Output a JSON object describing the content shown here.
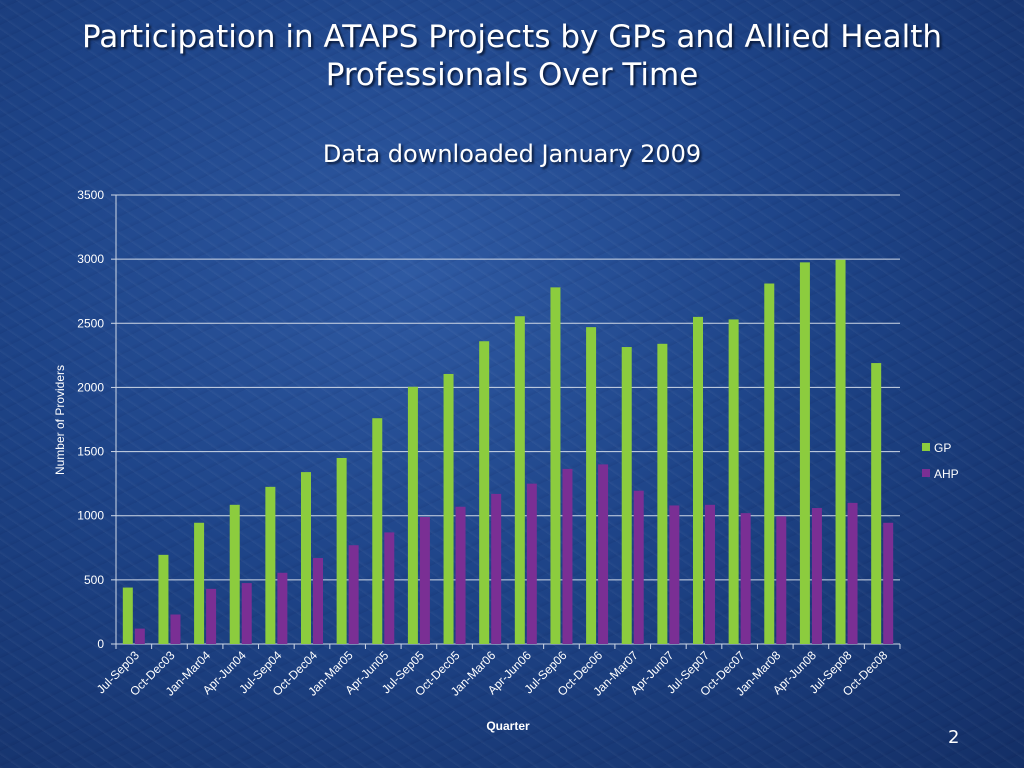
{
  "slide": {
    "title": "Participation in ATAPS Projects by GPs and Allied Health Professionals Over Time",
    "subtitle": "Data downloaded January 2009",
    "page_number": "2"
  },
  "chart_data": {
    "type": "bar",
    "title": "Participation in ATAPS Projects by GPs and Allied Health Professionals Over Time",
    "subtitle": "Data downloaded January 2009",
    "xlabel": "Quarter",
    "ylabel": "Number of Providers",
    "ylim": [
      0,
      3500
    ],
    "yticks": [
      0,
      500,
      1000,
      1500,
      2000,
      2500,
      3000,
      3500
    ],
    "grid": true,
    "legend_position": "right",
    "categories": [
      "Jul-Sep03",
      "Oct-Dec03",
      "Jan-Mar04",
      "Apr-Jun04",
      "Jul-Sep04",
      "Oct-Dec04",
      "Jan-Mar05",
      "Apr-Jun05",
      "Jul-Sep05",
      "Oct-Dec05",
      "Jan-Mar06",
      "Apr-Jun06",
      "Jul-Sep06",
      "Oct-Dec06",
      "Jan-Mar07",
      "Apr-Jun07",
      "Jul-Sep07",
      "Oct-Dec07",
      "Jan-Mar08",
      "Apr-Jun08",
      "Jul-Sep08",
      "Oct-Dec08"
    ],
    "series": [
      {
        "name": "GP",
        "color": "#8ccc3e",
        "values": [
          440,
          695,
          945,
          1085,
          1225,
          1340,
          1450,
          1760,
          2005,
          2105,
          2360,
          2555,
          2780,
          2470,
          2315,
          2340,
          2550,
          2530,
          2810,
          2975,
          2995,
          2190
        ]
      },
      {
        "name": "AHP",
        "color": "#7a2f94",
        "values": [
          120,
          230,
          430,
          475,
          555,
          670,
          770,
          870,
          990,
          1070,
          1170,
          1250,
          1365,
          1400,
          1195,
          1080,
          1085,
          1020,
          995,
          1060,
          1100,
          945
        ]
      }
    ]
  }
}
